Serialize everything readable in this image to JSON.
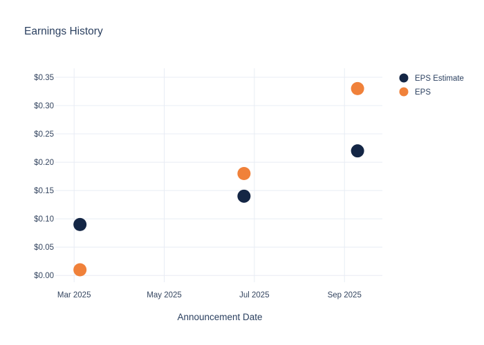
{
  "chart_data": {
    "type": "scatter",
    "title": "Earnings History",
    "xlabel": "Announcement Date",
    "ylabel": "",
    "grid": true,
    "legend_position": "right-top",
    "x_axis": {
      "tick_labels": [
        "Mar 2025",
        "May 2025",
        "Jul 2025",
        "Sep 2025"
      ],
      "tick_months_from_mar2025": [
        0,
        2,
        4,
        6
      ]
    },
    "y_axis": {
      "tick_labels": [
        "$0.00",
        "$0.05",
        "$0.10",
        "$0.15",
        "$0.20",
        "$0.25",
        "$0.30",
        "$0.35"
      ],
      "tick_values": [
        0.0,
        0.05,
        0.1,
        0.15,
        0.2,
        0.25,
        0.3,
        0.35
      ],
      "ylim": [
        0,
        0.365
      ]
    },
    "series": [
      {
        "name": "EPS Estimate",
        "color": "#142645",
        "x_months_from_mar2025": [
          0.13,
          3.77,
          6.29
        ],
        "x_dates_approx": [
          "2025-03-05",
          "2025-06-24",
          "2025-09-10"
        ],
        "values": [
          0.09,
          0.14,
          0.22
        ]
      },
      {
        "name": "EPS",
        "color": "#F0813A",
        "x_months_from_mar2025": [
          0.13,
          3.77,
          6.29
        ],
        "x_dates_approx": [
          "2025-03-05",
          "2025-06-24",
          "2025-09-10"
        ],
        "values": [
          0.01,
          0.18,
          0.33
        ]
      }
    ]
  },
  "colors": {
    "text": "#2a3f5f",
    "tick_text": "#33445f",
    "gridline": "#e8ecf4",
    "background": "#ffffff"
  }
}
